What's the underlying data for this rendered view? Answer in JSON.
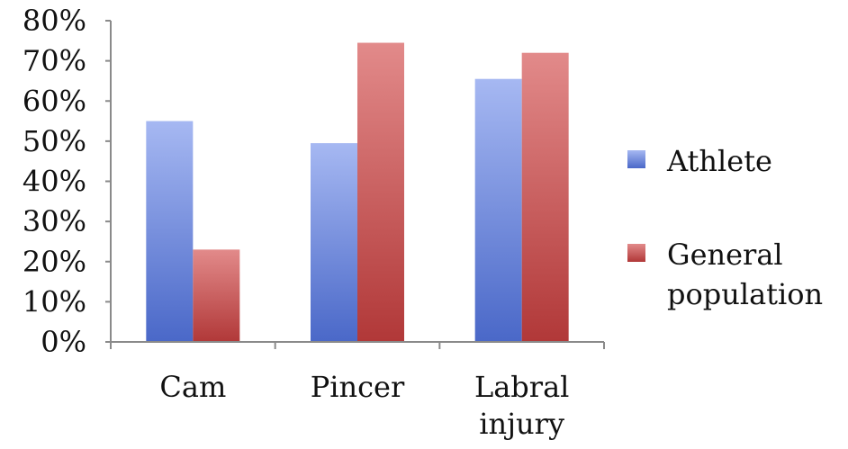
{
  "chart_data": {
    "type": "bar",
    "categories": [
      [
        "Cam"
      ],
      [
        "Pincer"
      ],
      [
        "Labral",
        "injury"
      ]
    ],
    "series": [
      {
        "name": "Athlete",
        "values": [
          55,
          49.5,
          65.5
        ],
        "color": "#5a78d4"
      },
      {
        "name": "General population",
        "name_lines": [
          "General",
          "population"
        ],
        "values": [
          23,
          74.5,
          72
        ],
        "color": "#b84040"
      }
    ],
    "y_ticks": [
      "0%",
      "10%",
      "20%",
      "30%",
      "40%",
      "50%",
      "60%",
      "70%",
      "80%"
    ],
    "ylim": [
      0,
      80
    ],
    "y_unit": "%",
    "grid": false,
    "legend": "right",
    "title": "",
    "xlabel": "",
    "ylabel": ""
  }
}
